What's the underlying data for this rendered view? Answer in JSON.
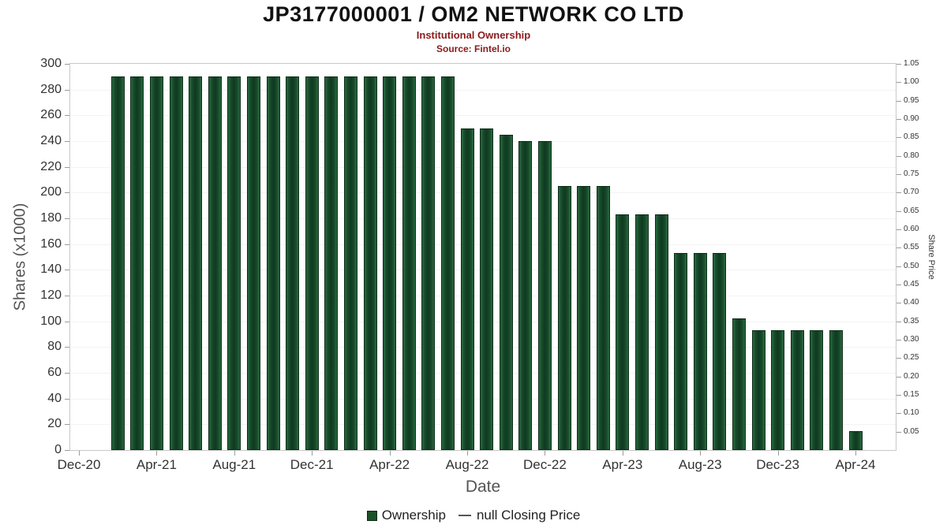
{
  "chart_data": {
    "type": "bar",
    "title": "JP3177000001 / OM2 NETWORK CO LTD",
    "subtitle": "Institutional Ownership",
    "source": "Source: Fintel.io",
    "xlabel": "Date",
    "ylabel": "Shares (x1000)",
    "y2label": "Share Price",
    "ylim": [
      0,
      300
    ],
    "y2lim": [
      0,
      1.05
    ],
    "grid": "faint-horizontal",
    "legend_position": "bottom-center",
    "y_ticks": [
      0,
      20,
      40,
      60,
      80,
      100,
      120,
      140,
      160,
      180,
      200,
      220,
      240,
      260,
      280,
      300
    ],
    "y2_ticks": [
      "1.05",
      "1.00",
      "0.95",
      "0.90",
      "0.85",
      "0.80",
      "0.75",
      "0.70",
      "0.65",
      "0.60",
      "0.55",
      "0.50",
      "0.45",
      "0.40",
      "0.35",
      "0.30",
      "0.25",
      "0.20",
      "0.15",
      "0.10",
      "0.05"
    ],
    "x_ticks": [
      "Dec-20",
      "Apr-21",
      "Aug-21",
      "Dec-21",
      "Apr-22",
      "Aug-22",
      "Dec-22",
      "Apr-23",
      "Aug-23",
      "Dec-23",
      "Apr-24"
    ],
    "colors": {
      "bar_fill": "#1c5128",
      "bar_border": "#0c2c17",
      "subtitle_red": "#8b1a1a",
      "line_gray": "#555555"
    },
    "legend": [
      {
        "label": "Ownership",
        "marker": "square",
        "color": "#1c5128"
      },
      {
        "label": "null Closing Price",
        "marker": "line",
        "color": "#555555"
      }
    ],
    "bars": [
      {
        "date": "Feb-21",
        "value": 290
      },
      {
        "date": "Mar-21",
        "value": 290
      },
      {
        "date": "Apr-21",
        "value": 290
      },
      {
        "date": "May-21",
        "value": 290
      },
      {
        "date": "Jun-21",
        "value": 290
      },
      {
        "date": "Jul-21",
        "value": 290
      },
      {
        "date": "Aug-21",
        "value": 290
      },
      {
        "date": "Sep-21",
        "value": 290
      },
      {
        "date": "Oct-21",
        "value": 290
      },
      {
        "date": "Nov-21",
        "value": 290
      },
      {
        "date": "Dec-21",
        "value": 290
      },
      {
        "date": "Jan-22",
        "value": 290
      },
      {
        "date": "Feb-22",
        "value": 290
      },
      {
        "date": "Mar-22",
        "value": 290
      },
      {
        "date": "Apr-22",
        "value": 290
      },
      {
        "date": "May-22",
        "value": 290
      },
      {
        "date": "Jun-22",
        "value": 290
      },
      {
        "date": "Jul-22",
        "value": 290
      },
      {
        "date": "Aug-22",
        "value": 250
      },
      {
        "date": "Sep-22",
        "value": 250
      },
      {
        "date": "Oct-22",
        "value": 245
      },
      {
        "date": "Nov-22",
        "value": 240
      },
      {
        "date": "Dec-22",
        "value": 240
      },
      {
        "date": "Jan-23",
        "value": 205
      },
      {
        "date": "Feb-23",
        "value": 205
      },
      {
        "date": "Mar-23",
        "value": 205
      },
      {
        "date": "Apr-23",
        "value": 183
      },
      {
        "date": "May-23",
        "value": 183
      },
      {
        "date": "Jun-23",
        "value": 183
      },
      {
        "date": "Jul-23",
        "value": 153
      },
      {
        "date": "Aug-23",
        "value": 153
      },
      {
        "date": "Sep-23",
        "value": 153
      },
      {
        "date": "Oct-23",
        "value": 102
      },
      {
        "date": "Nov-23",
        "value": 93
      },
      {
        "date": "Dec-23",
        "value": 93
      },
      {
        "date": "Jan-24",
        "value": 93
      },
      {
        "date": "Feb-24",
        "value": 93
      },
      {
        "date": "Mar-24",
        "value": 93
      },
      {
        "date": "Apr-24",
        "value": 15
      }
    ]
  }
}
